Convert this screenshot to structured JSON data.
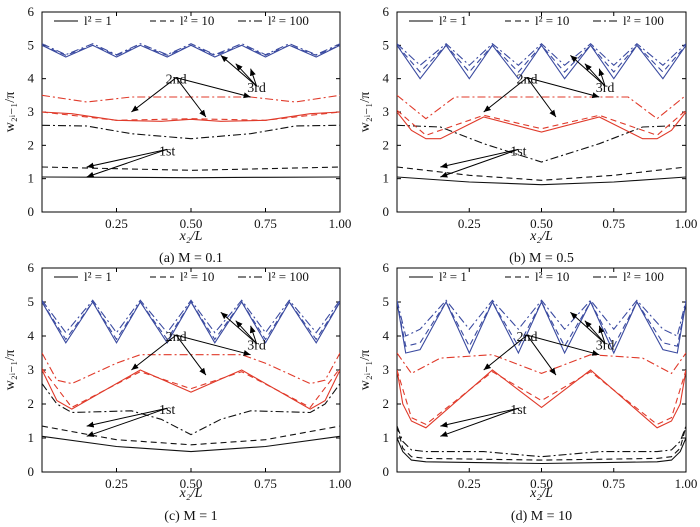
{
  "chart_data": [
    {
      "type": "line",
      "panel": "a",
      "caption": "(a) M = 0.1",
      "xlabel": "x₂/L",
      "ylabel": "w₂ᵢ₋₁/π",
      "xlim": [
        0,
        1
      ],
      "ylim": [
        0,
        6
      ],
      "xticks": [
        "0.25",
        "0.50",
        "0.75",
        "1.00"
      ],
      "yticks": [
        "0",
        "1",
        "2",
        "3",
        "4",
        "5",
        "6"
      ],
      "legend": [
        "l² = 1",
        "l² = 10",
        "l² = 100"
      ],
      "annotations": [
        "1st",
        "2nd",
        "3rd"
      ],
      "series": [
        {
          "name": "l² = 1",
          "mode": "1st",
          "x": [
            0,
            0.25,
            0.5,
            0.75,
            1.0
          ],
          "y": [
            1.05,
            1.04,
            1.03,
            1.04,
            1.05
          ]
        },
        {
          "name": "l² = 10",
          "mode": "1st",
          "x": [
            0,
            0.25,
            0.5,
            0.75,
            1.0
          ],
          "y": [
            1.35,
            1.3,
            1.25,
            1.3,
            1.35
          ]
        },
        {
          "name": "l² = 100",
          "mode": "1st",
          "x": [
            0,
            0.15,
            0.3,
            0.5,
            0.7,
            0.85,
            1.0
          ],
          "y": [
            2.6,
            2.58,
            2.35,
            2.2,
            2.35,
            2.58,
            2.6
          ]
        },
        {
          "name": "l² = 1",
          "mode": "2nd",
          "x": [
            0,
            0.1,
            0.25,
            0.4,
            0.5,
            0.6,
            0.75,
            0.9,
            1.0
          ],
          "y": [
            3.0,
            2.95,
            2.75,
            2.72,
            2.78,
            2.72,
            2.75,
            2.95,
            3.0
          ]
        },
        {
          "name": "l² = 10",
          "mode": "2nd",
          "x": [
            0,
            0.25,
            0.5,
            0.75,
            1.0
          ],
          "y": [
            3.0,
            2.75,
            2.8,
            2.75,
            3.0
          ]
        },
        {
          "name": "l² = 100",
          "mode": "2nd",
          "x": [
            0,
            0.15,
            0.3,
            0.5,
            0.7,
            0.85,
            1.0
          ],
          "y": [
            3.5,
            3.3,
            3.45,
            3.45,
            3.45,
            3.3,
            3.5
          ]
        },
        {
          "name": "l² = 1",
          "mode": "3rd",
          "x": [
            0,
            0.08,
            0.17,
            0.25,
            0.33,
            0.42,
            0.5,
            0.58,
            0.67,
            0.75,
            0.83,
            0.92,
            1.0
          ],
          "y": [
            5.0,
            4.65,
            5.0,
            4.65,
            5.0,
            4.65,
            5.0,
            4.65,
            5.0,
            4.65,
            5.0,
            4.65,
            5.0
          ]
        },
        {
          "name": "l² = 10",
          "mode": "3rd",
          "x": [
            0,
            0.08,
            0.17,
            0.25,
            0.33,
            0.42,
            0.5,
            0.58,
            0.67,
            0.75,
            0.83,
            0.92,
            1.0
          ],
          "y": [
            5.0,
            4.7,
            5.0,
            4.7,
            5.0,
            4.7,
            5.0,
            4.7,
            5.0,
            4.7,
            5.0,
            4.7,
            5.0
          ]
        },
        {
          "name": "l² = 100",
          "mode": "3rd",
          "x": [
            0,
            0.08,
            0.17,
            0.25,
            0.33,
            0.42,
            0.5,
            0.58,
            0.67,
            0.75,
            0.83,
            0.92,
            1.0
          ],
          "y": [
            5.05,
            4.72,
            5.05,
            4.72,
            5.05,
            4.72,
            5.05,
            4.72,
            5.05,
            4.72,
            5.05,
            4.72,
            5.05
          ]
        }
      ]
    },
    {
      "type": "line",
      "panel": "b",
      "caption": "(b) M = 0.5",
      "xlabel": "x₂/L",
      "ylabel": "w₂ᵢ₋₁/π",
      "xlim": [
        0,
        1
      ],
      "ylim": [
        0,
        6
      ],
      "xticks": [
        "0.25",
        "0.50",
        "0.75",
        "1.00"
      ],
      "yticks": [
        "0",
        "1",
        "2",
        "3",
        "4",
        "5",
        "6"
      ],
      "legend": [
        "l² = 1",
        "l² = 10",
        "l² = 100"
      ],
      "annotations": [
        "1st",
        "2nd",
        "3rd"
      ],
      "series": [
        {
          "name": "l² = 1",
          "mode": "1st",
          "x": [
            0,
            0.25,
            0.5,
            0.75,
            1.0
          ],
          "y": [
            1.05,
            0.9,
            0.82,
            0.9,
            1.05
          ]
        },
        {
          "name": "l² = 10",
          "mode": "1st",
          "x": [
            0,
            0.25,
            0.5,
            0.75,
            1.0
          ],
          "y": [
            1.35,
            1.1,
            0.95,
            1.1,
            1.35
          ]
        },
        {
          "name": "l² = 100",
          "mode": "1st",
          "x": [
            0,
            0.15,
            0.3,
            0.5,
            0.7,
            0.85,
            1.0
          ],
          "y": [
            2.6,
            2.55,
            2.05,
            1.5,
            2.05,
            2.55,
            2.6
          ]
        },
        {
          "name": "l² = 1",
          "mode": "2nd",
          "x": [
            0,
            0.05,
            0.1,
            0.15,
            0.3,
            0.5,
            0.7,
            0.85,
            0.9,
            0.95,
            1.0
          ],
          "y": [
            3.0,
            2.45,
            2.2,
            2.2,
            2.85,
            2.4,
            2.85,
            2.2,
            2.2,
            2.45,
            3.0
          ]
        },
        {
          "name": "l² = 10",
          "mode": "2nd",
          "x": [
            0,
            0.1,
            0.3,
            0.5,
            0.7,
            0.9,
            1.0
          ],
          "y": [
            3.05,
            2.3,
            2.9,
            2.5,
            2.9,
            2.3,
            3.05
          ]
        },
        {
          "name": "l² = 100",
          "mode": "2nd",
          "x": [
            0,
            0.1,
            0.2,
            0.5,
            0.8,
            0.9,
            1.0
          ],
          "y": [
            3.5,
            2.8,
            3.45,
            3.45,
            3.45,
            2.8,
            3.5
          ]
        },
        {
          "name": "l² = 1",
          "mode": "3rd",
          "x": [
            0,
            0.08,
            0.17,
            0.25,
            0.33,
            0.42,
            0.5,
            0.58,
            0.67,
            0.75,
            0.83,
            0.92,
            1.0
          ],
          "y": [
            5.0,
            4.0,
            5.0,
            4.0,
            5.0,
            4.0,
            5.0,
            4.0,
            5.0,
            4.0,
            5.0,
            4.0,
            5.0
          ]
        },
        {
          "name": "l² = 10",
          "mode": "3rd",
          "x": [
            0,
            0.08,
            0.17,
            0.25,
            0.33,
            0.42,
            0.5,
            0.58,
            0.67,
            0.75,
            0.83,
            0.92,
            1.0
          ],
          "y": [
            5.0,
            4.2,
            5.0,
            4.2,
            5.0,
            4.2,
            5.0,
            4.2,
            5.0,
            4.2,
            5.0,
            4.2,
            5.0
          ]
        },
        {
          "name": "l² = 100",
          "mode": "3rd",
          "x": [
            0,
            0.08,
            0.17,
            0.25,
            0.33,
            0.42,
            0.5,
            0.58,
            0.67,
            0.75,
            0.83,
            0.92,
            1.0
          ],
          "y": [
            5.05,
            4.4,
            5.05,
            4.4,
            5.05,
            4.4,
            5.05,
            4.4,
            5.05,
            4.4,
            5.05,
            4.4,
            5.05
          ]
        }
      ]
    },
    {
      "type": "line",
      "panel": "c",
      "caption": "(c) M = 1",
      "xlabel": "x₂/L",
      "ylabel": "w₂ᵢ₋₁/π",
      "xlim": [
        0,
        1
      ],
      "ylim": [
        0,
        6
      ],
      "xticks": [
        "0.25",
        "0.50",
        "0.75",
        "1.00"
      ],
      "yticks": [
        "0",
        "1",
        "2",
        "3",
        "4",
        "5",
        "6"
      ],
      "legend": [
        "l² = 1",
        "l² = 10",
        "l² = 100"
      ],
      "annotations": [
        "1st",
        "2nd",
        "3rd"
      ],
      "series": [
        {
          "name": "l² = 1",
          "mode": "1st",
          "x": [
            0,
            0.25,
            0.5,
            0.75,
            1.0
          ],
          "y": [
            1.05,
            0.75,
            0.6,
            0.75,
            1.05
          ]
        },
        {
          "name": "l² = 10",
          "mode": "1st",
          "x": [
            0,
            0.25,
            0.5,
            0.75,
            1.0
          ],
          "y": [
            1.35,
            0.95,
            0.8,
            0.95,
            1.35
          ]
        },
        {
          "name": "l² = 100",
          "mode": "1st",
          "x": [
            0,
            0.05,
            0.1,
            0.3,
            0.4,
            0.5,
            0.6,
            0.7,
            0.9,
            0.95,
            1.0
          ],
          "y": [
            2.6,
            2.0,
            1.75,
            1.8,
            1.55,
            1.1,
            1.55,
            1.8,
            1.75,
            2.0,
            2.6
          ]
        },
        {
          "name": "l² = 1",
          "mode": "2nd",
          "x": [
            0,
            0.05,
            0.1,
            0.33,
            0.5,
            0.67,
            0.9,
            0.95,
            1.0
          ],
          "y": [
            3.0,
            2.1,
            1.85,
            3.0,
            2.35,
            3.0,
            1.85,
            2.1,
            3.0
          ]
        },
        {
          "name": "l² = 10",
          "mode": "2nd",
          "x": [
            0,
            0.1,
            0.33,
            0.5,
            0.67,
            0.9,
            1.0
          ],
          "y": [
            3.05,
            1.9,
            2.95,
            2.45,
            2.95,
            1.9,
            3.05
          ]
        },
        {
          "name": "l² = 100",
          "mode": "2nd",
          "x": [
            0,
            0.05,
            0.1,
            0.25,
            0.33,
            0.5,
            0.67,
            0.75,
            0.9,
            0.95,
            1.0
          ],
          "y": [
            3.5,
            2.7,
            2.6,
            3.2,
            3.45,
            3.45,
            3.45,
            3.2,
            2.6,
            2.7,
            3.5
          ]
        },
        {
          "name": "l² = 1",
          "mode": "3rd",
          "x": [
            0,
            0.08,
            0.17,
            0.25,
            0.33,
            0.42,
            0.5,
            0.58,
            0.67,
            0.75,
            0.83,
            0.92,
            1.0
          ],
          "y": [
            5.0,
            3.8,
            5.0,
            3.8,
            5.0,
            3.8,
            5.0,
            3.8,
            5.0,
            3.8,
            5.0,
            3.8,
            5.0
          ]
        },
        {
          "name": "l² = 10",
          "mode": "3rd",
          "x": [
            0,
            0.08,
            0.17,
            0.25,
            0.33,
            0.42,
            0.5,
            0.58,
            0.67,
            0.75,
            0.83,
            0.92,
            1.0
          ],
          "y": [
            5.0,
            3.9,
            5.0,
            3.9,
            5.0,
            3.9,
            5.0,
            3.9,
            5.0,
            3.9,
            5.0,
            3.9,
            5.0
          ]
        },
        {
          "name": "l² = 100",
          "mode": "3rd",
          "x": [
            0,
            0.08,
            0.17,
            0.25,
            0.33,
            0.42,
            0.5,
            0.58,
            0.67,
            0.75,
            0.83,
            0.92,
            1.0
          ],
          "y": [
            5.05,
            4.1,
            5.05,
            4.1,
            5.05,
            4.1,
            5.05,
            4.1,
            5.05,
            4.1,
            5.05,
            4.1,
            5.05
          ]
        }
      ]
    },
    {
      "type": "line",
      "panel": "d",
      "caption": "(d) M = 10",
      "xlabel": "x₂/L",
      "ylabel": "w₂ᵢ₋₁/π",
      "xlim": [
        0,
        1
      ],
      "ylim": [
        0,
        6
      ],
      "xticks": [
        "0.25",
        "0.50",
        "0.75",
        "1.00"
      ],
      "yticks": [
        "0",
        "1",
        "2",
        "3",
        "4",
        "5",
        "6"
      ],
      "legend": [
        "l² = 1",
        "l² = 10",
        "l² = 100"
      ],
      "annotations": [
        "1st",
        "2nd",
        "3rd"
      ],
      "series": [
        {
          "name": "l² = 1",
          "mode": "1st",
          "x": [
            0,
            0.02,
            0.05,
            0.1,
            0.5,
            0.9,
            0.95,
            0.98,
            1.0
          ],
          "y": [
            1.0,
            0.6,
            0.35,
            0.3,
            0.25,
            0.3,
            0.35,
            0.6,
            1.0
          ]
        },
        {
          "name": "l² = 10",
          "mode": "1st",
          "x": [
            0,
            0.02,
            0.05,
            0.1,
            0.5,
            0.9,
            0.95,
            0.98,
            1.0
          ],
          "y": [
            1.35,
            0.7,
            0.45,
            0.4,
            0.35,
            0.4,
            0.45,
            0.7,
            1.35
          ]
        },
        {
          "name": "l² = 100",
          "mode": "1st",
          "x": [
            0,
            0.02,
            0.05,
            0.1,
            0.3,
            0.5,
            0.7,
            0.9,
            0.95,
            0.98,
            1.0
          ],
          "y": [
            1.35,
            0.9,
            0.65,
            0.6,
            0.6,
            0.45,
            0.6,
            0.6,
            0.65,
            0.9,
            1.35
          ]
        },
        {
          "name": "l² = 1",
          "mode": "2nd",
          "x": [
            0,
            0.02,
            0.05,
            0.1,
            0.33,
            0.5,
            0.67,
            0.9,
            0.95,
            0.98,
            1.0
          ],
          "y": [
            3.0,
            2.0,
            1.5,
            1.3,
            3.0,
            1.9,
            3.0,
            1.3,
            1.5,
            2.0,
            3.0
          ]
        },
        {
          "name": "l² = 10",
          "mode": "2nd",
          "x": [
            0,
            0.05,
            0.1,
            0.33,
            0.5,
            0.67,
            0.9,
            0.95,
            1.0
          ],
          "y": [
            3.0,
            1.6,
            1.4,
            2.95,
            2.1,
            2.95,
            1.4,
            1.6,
            3.0
          ]
        },
        {
          "name": "l² = 100",
          "mode": "2nd",
          "x": [
            0,
            0.05,
            0.15,
            0.33,
            0.5,
            0.67,
            0.85,
            0.95,
            1.0
          ],
          "y": [
            3.5,
            2.9,
            3.35,
            3.45,
            2.9,
            3.45,
            3.35,
            2.9,
            3.5
          ]
        },
        {
          "name": "l² = 1",
          "mode": "3rd",
          "x": [
            0,
            0.03,
            0.08,
            0.17,
            0.25,
            0.33,
            0.42,
            0.5,
            0.58,
            0.67,
            0.75,
            0.83,
            0.92,
            0.97,
            1.0
          ],
          "y": [
            5.0,
            3.5,
            3.6,
            5.0,
            3.5,
            5.0,
            3.5,
            5.0,
            3.5,
            5.0,
            3.5,
            5.0,
            3.6,
            3.5,
            5.0
          ]
        },
        {
          "name": "l² = 10",
          "mode": "3rd",
          "x": [
            0,
            0.03,
            0.08,
            0.17,
            0.25,
            0.33,
            0.42,
            0.5,
            0.58,
            0.67,
            0.75,
            0.83,
            0.92,
            0.97,
            1.0
          ],
          "y": [
            5.0,
            3.7,
            3.8,
            5.0,
            3.7,
            5.0,
            3.7,
            5.0,
            3.7,
            5.0,
            3.7,
            5.0,
            3.8,
            3.7,
            5.0
          ]
        },
        {
          "name": "l² = 100",
          "mode": "3rd",
          "x": [
            0,
            0.03,
            0.08,
            0.17,
            0.25,
            0.33,
            0.42,
            0.5,
            0.58,
            0.67,
            0.75,
            0.83,
            0.92,
            0.97,
            1.0
          ],
          "y": [
            5.05,
            4.0,
            4.2,
            5.05,
            4.2,
            5.05,
            4.2,
            5.05,
            4.2,
            5.05,
            4.2,
            5.05,
            4.2,
            4.0,
            5.05
          ]
        }
      ]
    }
  ],
  "colors": {
    "1st": "#111111",
    "2nd": "#e03a2a",
    "3rd": "#3a4aa0"
  }
}
